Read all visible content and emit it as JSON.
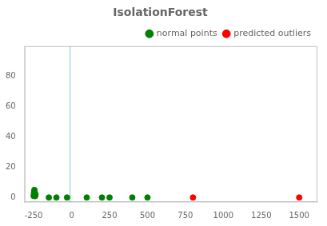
{
  "chart_data": {
    "type": "scatter",
    "title": "IsolationForest",
    "series": [
      {
        "name": "normal points",
        "color": "#008000",
        "x": [
          -250,
          -248,
          -245,
          -242,
          -240,
          -238,
          -150,
          -100,
          -30,
          100,
          200,
          250,
          400,
          500
        ],
        "values": [
          1,
          3,
          5,
          3,
          1,
          2,
          0,
          0,
          0,
          0,
          0,
          0,
          0,
          0
        ]
      },
      {
        "name": "predicted outliers",
        "color": "#ff0000",
        "x": [
          -248,
          -246,
          -244,
          -242,
          800,
          1500
        ],
        "values": [
          2,
          4,
          3,
          1,
          0,
          0
        ]
      }
    ],
    "vlines": [
      {
        "x": -10,
        "color": "#add8e6"
      }
    ],
    "xlim": [
      -310,
      1620
    ],
    "ylim": [
      -3,
      100
    ],
    "xticks": [
      -250,
      0,
      250,
      500,
      750,
      1000,
      1250,
      1500
    ],
    "yticks": [
      0,
      20,
      40,
      60,
      80
    ],
    "grid": false,
    "legend": "upper right"
  }
}
